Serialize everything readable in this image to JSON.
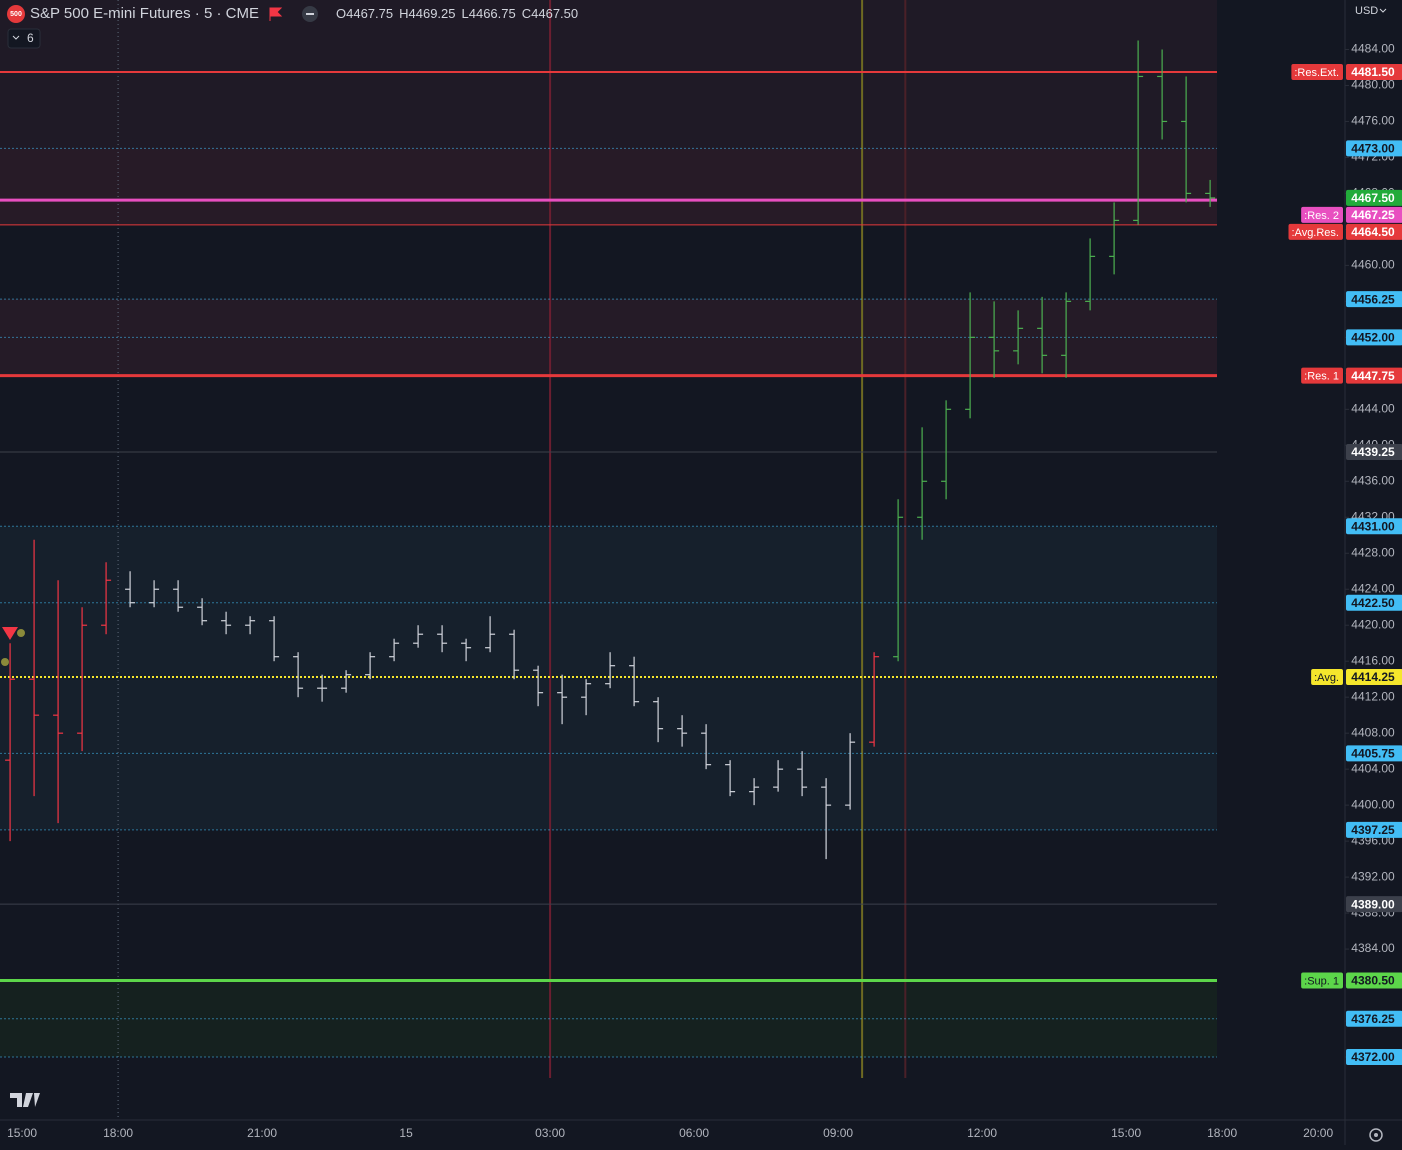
{
  "header": {
    "symbol_icon": "500",
    "title": "S&P 500 E-mini Futures · 5 · CME",
    "ohlc": [
      "O4467.75",
      "H4469.25",
      "L4466.75",
      "C4467.50"
    ],
    "indicators_count": "6",
    "currency": "USD"
  },
  "chart_data": {
    "type": "ohlc",
    "x": [
      -0.25,
      0.25,
      0.75,
      1.25,
      1.75,
      2.25,
      2.75,
      3.25,
      3.75,
      4.25,
      4.75,
      5.25,
      5.75,
      6.25,
      6.75,
      7.25,
      7.75,
      8.25,
      8.75,
      9.25,
      9.75,
      10.25,
      10.75,
      11.25,
      11.75,
      12.25,
      12.75,
      13.25,
      13.75,
      14.25,
      14.75,
      15.25,
      15.75,
      16.25,
      16.75,
      17.25,
      17.75,
      18.25,
      18.75,
      19.25,
      19.75,
      20.25,
      20.75,
      21.25,
      21.75,
      22.25,
      22.75,
      23.25,
      23.75,
      24.25,
      24.75
    ],
    "open": [
      4405,
      4414,
      4410,
      4408,
      4420,
      4424,
      4422.5,
      4424,
      4422,
      4420.5,
      4420,
      4420.5,
      4416.5,
      4413,
      4413,
      4414.5,
      4416.5,
      4418,
      4419,
      4418,
      4417.5,
      4419,
      4415,
      4412.5,
      4412,
      4413.5,
      4415.5,
      4411.5,
      4408.5,
      4408,
      4404.5,
      4401.5,
      4402,
      4404,
      4402,
      4400,
      4407,
      4416.5,
      4432,
      4436,
      4444,
      4452,
      4450.5,
      4453,
      4450,
      4456,
      4461,
      4465,
      4481,
      4476,
      4468
    ],
    "high": [
      4418,
      4429.5,
      4425,
      4422,
      4427,
      4426,
      4425,
      4425,
      4423,
      4421.5,
      4421,
      4421,
      4417,
      4414.5,
      4415,
      4417,
      4418.5,
      4420,
      4420,
      4418.5,
      4421,
      4419.5,
      4415.5,
      4414.5,
      4414,
      4417,
      4416.5,
      4412,
      4410,
      4409,
      4405,
      4403,
      4405,
      4406,
      4403,
      4408,
      4417,
      4434,
      4442,
      4445,
      4457,
      4456,
      4455,
      4456.5,
      4457,
      4463,
      4467,
      4485,
      4484,
      4481,
      4469.5
    ],
    "low": [
      4396,
      4401,
      4398,
      4406,
      4419,
      4422,
      4422,
      4421.5,
      4420,
      4419,
      4419,
      4416,
      4412,
      4411.5,
      4412.5,
      4414,
      4416,
      4417.5,
      4417,
      4416,
      4417,
      4414,
      4411,
      4409,
      4410,
      4413,
      4411,
      4407,
      4406.5,
      4404,
      4401,
      4400,
      4401.5,
      4401,
      4394,
      4399.5,
      4406.5,
      4416,
      4429.5,
      4434,
      4443,
      4447.5,
      4449,
      4448,
      4447.5,
      4455,
      4459,
      4464.5,
      4474,
      4467,
      4466.5
    ],
    "close": [
      4414,
      4410,
      4408,
      4420,
      4425,
      4422.5,
      4424,
      4422,
      4420.5,
      4420,
      4420.5,
      4416.5,
      4413,
      4413,
      4414.5,
      4416.5,
      4418,
      4419,
      4418,
      4417.5,
      4419,
      4415,
      4412.5,
      4412,
      4413.5,
      4415.5,
      4411.5,
      4408.5,
      4408,
      4404.5,
      4401.5,
      4402,
      4404,
      4402,
      4400,
      4407,
      4416.5,
      4432,
      4436,
      4444,
      4452,
      4450.5,
      4453,
      4450,
      4456,
      4461,
      4465,
      4481,
      4476,
      4468,
      4467.5
    ],
    "colors": [
      "#f23645",
      "#f23645",
      "#f23645",
      "#f23645",
      "#f23645",
      "#d1d4dc",
      "#d1d4dc",
      "#d1d4dc",
      "#d1d4dc",
      "#d1d4dc",
      "#d1d4dc",
      "#d1d4dc",
      "#d1d4dc",
      "#d1d4dc",
      "#d1d4dc",
      "#d1d4dc",
      "#d1d4dc",
      "#d1d4dc",
      "#d1d4dc",
      "#d1d4dc",
      "#d1d4dc",
      "#d1d4dc",
      "#d1d4dc",
      "#d1d4dc",
      "#d1d4dc",
      "#d1d4dc",
      "#d1d4dc",
      "#d1d4dc",
      "#d1d4dc",
      "#d1d4dc",
      "#d1d4dc",
      "#d1d4dc",
      "#d1d4dc",
      "#d1d4dc",
      "#d1d4dc",
      "#d1d4dc",
      "#f23645",
      "#4caf50",
      "#4caf50",
      "#4caf50",
      "#4caf50",
      "#4caf50",
      "#4caf50",
      "#4caf50",
      "#4caf50",
      "#4caf50",
      "#4caf50",
      "#4caf50",
      "#4caf50",
      "#4caf50",
      "#4caf50"
    ],
    "ylim": [
      4365,
      4489.5
    ],
    "yticks": [
      {
        "value": 4372,
        "label": "4372.00"
      },
      {
        "value": 4376,
        "label": "4376.00"
      },
      {
        "value": 4380,
        "label": "4380.00"
      },
      {
        "value": 4384,
        "label": "4384.00"
      },
      {
        "value": 4388,
        "label": "4388.00"
      },
      {
        "value": 4392,
        "label": "4392.00"
      },
      {
        "value": 4396,
        "label": "4396.00"
      },
      {
        "value": 4400,
        "label": "4400.00"
      },
      {
        "value": 4404,
        "label": "4404.00"
      },
      {
        "value": 4408,
        "label": "4408.00"
      },
      {
        "value": 4412,
        "label": "4412.00"
      },
      {
        "value": 4416,
        "label": "4416.00"
      },
      {
        "value": 4420,
        "label": "4420.00"
      },
      {
        "value": 4424,
        "label": "4424.00"
      },
      {
        "value": 4428,
        "label": "4428.00"
      },
      {
        "value": 4432,
        "label": "4432.00"
      },
      {
        "value": 4436,
        "label": "4436.00"
      },
      {
        "value": 4440,
        "label": "4440.00"
      },
      {
        "value": 4444,
        "label": "4444.00"
      },
      {
        "value": 4448,
        "label": "4448.00"
      },
      {
        "value": 4452,
        "label": "4452.00"
      },
      {
        "value": 4456,
        "label": "4456.00"
      },
      {
        "value": 4460,
        "label": "4460.00"
      },
      {
        "value": 4464,
        "label": "4464.00"
      },
      {
        "value": 4468,
        "label": "4468.00"
      },
      {
        "value": 4472,
        "label": "4472.00"
      },
      {
        "value": 4476,
        "label": "4476.00"
      },
      {
        "value": 4480,
        "label": "4480.00"
      },
      {
        "value": 4484,
        "label": "4484.00"
      }
    ],
    "xlim": [
      -0.46,
      27.56
    ],
    "xticks": [
      {
        "value": 0,
        "label": "15:00"
      },
      {
        "value": 2,
        "label": "18:00"
      },
      {
        "value": 5,
        "label": "21:00"
      },
      {
        "value": 8,
        "label": "15"
      },
      {
        "value": 11,
        "label": "03:00"
      },
      {
        "value": 14,
        "label": "06:00"
      },
      {
        "value": 17,
        "label": "09:00"
      },
      {
        "value": 20,
        "label": "12:00"
      },
      {
        "value": 23,
        "label": "15:00"
      },
      {
        "value": 25,
        "label": "18:00"
      },
      {
        "value": 27,
        "label": "20:00"
      }
    ],
    "zones": [
      {
        "from": 4473,
        "to": 4489.5,
        "color": "#1f1a26"
      },
      {
        "from": 4464.5,
        "to": 4473,
        "color": "#271b27"
      },
      {
        "from": 4447.75,
        "to": 4456.25,
        "color": "#251b27"
      },
      {
        "from": 4397.25,
        "to": 4431,
        "color": "#16202c"
      },
      {
        "from": 4372,
        "to": 4380.5,
        "color": "#15211f"
      }
    ],
    "vlines": [
      {
        "x": 2,
        "color": "#5d6a7a",
        "style": "dotted"
      },
      {
        "x": 11,
        "color": "#6b1e30",
        "style": "solid"
      },
      {
        "x": 17.5,
        "color": "#6e6a22",
        "style": "solid"
      },
      {
        "x": 18.4,
        "color": "#4a2028",
        "style": "solid"
      }
    ],
    "levels": [
      {
        "value": 4481.5,
        "label": "4481.50",
        "tag": ":Res.Ext.",
        "color": "#e5393b",
        "style": "solid",
        "width": 2
      },
      {
        "value": 4473,
        "label": "4473.00",
        "color": "#42bdf5",
        "style": "dotted",
        "width": 1
      },
      {
        "value": 4467.25,
        "label": "4467.25",
        "tag": ":Res. 2",
        "color": "#e84fc0",
        "style": "solid",
        "width": 3
      },
      {
        "value": 4464.5,
        "label": "4464.50",
        "tag": ":Avg.Res.",
        "color": "#e5393b",
        "style": "solid",
        "width": 1
      },
      {
        "value": 4456.25,
        "label": "4456.25",
        "color": "#42bdf5",
        "style": "dotted",
        "width": 1
      },
      {
        "value": 4452,
        "label": "4452.00",
        "color": "#42bdf5",
        "style": "dotted",
        "width": 1
      },
      {
        "value": 4447.75,
        "label": "4447.75",
        "tag": ":Res. 1",
        "color": "#e5393b",
        "style": "solid",
        "width": 3
      },
      {
        "value": 4439.25,
        "label": "4439.25",
        "color": "#3c404b",
        "style": "solid",
        "width": 1
      },
      {
        "value": 4431,
        "label": "4431.00",
        "color": "#42bdf5",
        "style": "dotted",
        "width": 1
      },
      {
        "value": 4422.5,
        "label": "4422.50",
        "color": "#42bdf5",
        "style": "dotted",
        "width": 1
      },
      {
        "value": 4414.25,
        "label": "4414.25",
        "tag": ":Avg.",
        "color": "#f5e62c",
        "style": "dotted",
        "width": 2
      },
      {
        "value": 4405.75,
        "label": "4405.75",
        "color": "#42bdf5",
        "style": "dotted",
        "width": 1
      },
      {
        "value": 4397.25,
        "label": "4397.25",
        "color": "#42bdf5",
        "style": "dotted",
        "width": 1
      },
      {
        "value": 4389,
        "label": "4389.00",
        "color": "#3c404b",
        "style": "solid",
        "width": 1
      },
      {
        "value": 4380.5,
        "label": "4380.50",
        "tag": ":Sup. 1",
        "color": "#5cd64a",
        "style": "solid",
        "width": 3
      },
      {
        "value": 4376.25,
        "label": "4376.25",
        "color": "#42bdf5",
        "style": "dotted",
        "width": 1
      },
      {
        "value": 4372,
        "label": "4372.00",
        "color": "#42bdf5",
        "style": "dotted",
        "width": 1
      }
    ],
    "last_price": {
      "value": 4467.5,
      "label": "4467.50",
      "color": "#22ab3a"
    }
  }
}
